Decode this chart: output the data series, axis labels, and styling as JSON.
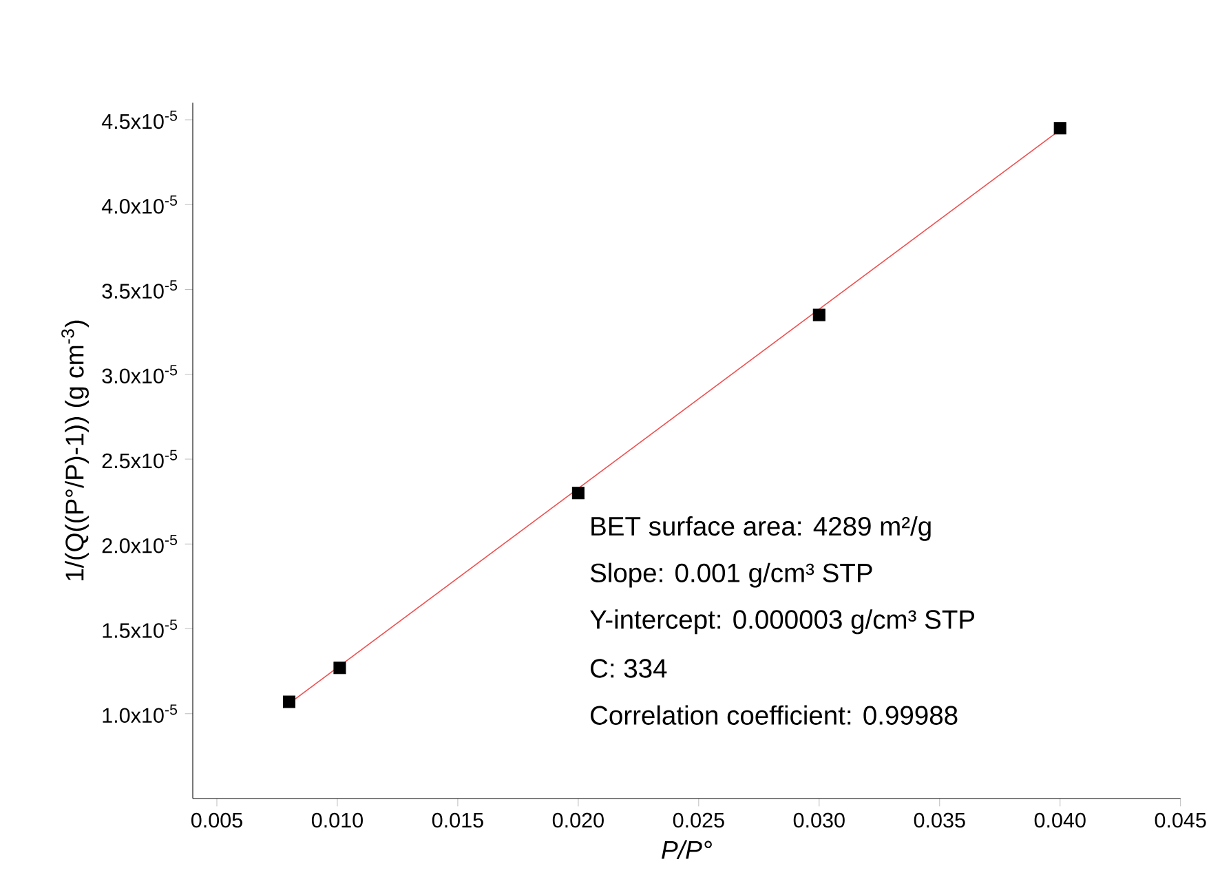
{
  "chart_data": {
    "type": "scatter",
    "xlabel": "P/P°",
    "ylabel": "1/(Q((P°/P)-1)) (g cm$^{-3}$)",
    "xlim": [
      0.004,
      0.045
    ],
    "ylim": [
      5e-06,
      4.6e-05
    ],
    "xticks": [
      {
        "value": 0.005,
        "label": "0.005"
      },
      {
        "value": 0.01,
        "label": "0.010"
      },
      {
        "value": 0.015,
        "label": "0.015"
      },
      {
        "value": 0.02,
        "label": "0.020"
      },
      {
        "value": 0.025,
        "label": "0.025"
      },
      {
        "value": 0.03,
        "label": "0.030"
      },
      {
        "value": 0.035,
        "label": "0.035"
      },
      {
        "value": 0.04,
        "label": "0.040"
      },
      {
        "value": 0.045,
        "label": "0.045"
      }
    ],
    "yticks": [
      {
        "value": 1e-05,
        "label": "1.0x10$^{-5}$"
      },
      {
        "value": 1.5e-05,
        "label": "1.5x10$^{-5}$"
      },
      {
        "value": 2e-05,
        "label": "2.0x10$^{-5}$"
      },
      {
        "value": 2.5e-05,
        "label": "2.5x10$^{-5}$"
      },
      {
        "value": 3e-05,
        "label": "3.0x10$^{-5}$"
      },
      {
        "value": 3.5e-05,
        "label": "3.5x10$^{-5}$"
      },
      {
        "value": 4e-05,
        "label": "4.0x10$^{-5}$"
      },
      {
        "value": 4.5e-05,
        "label": "4.5x10$^{-5}$"
      }
    ],
    "series": [
      {
        "type": "line",
        "color": "#f05050",
        "line_style": "solid",
        "x": [
          0.008,
          0.04
        ],
        "values": [
          1.06e-05,
          4.44e-05
        ]
      },
      {
        "color": "#000000",
        "marker": "square",
        "x": [
          0.008,
          0.0101,
          0.02,
          0.03,
          0.04
        ],
        "values": [
          1.07e-05,
          1.27e-05,
          2.3e-05,
          3.35e-05,
          4.45e-05
        ]
      }
    ],
    "annotations": [
      "BET surface area: 4289 m²/g",
      "Slope: 0.001 g/cm³ STP",
      "Y-intercept: 0.000003 g/cm³ STP",
      "C: 334",
      "Correlation coefficient:  0.99988"
    ]
  }
}
